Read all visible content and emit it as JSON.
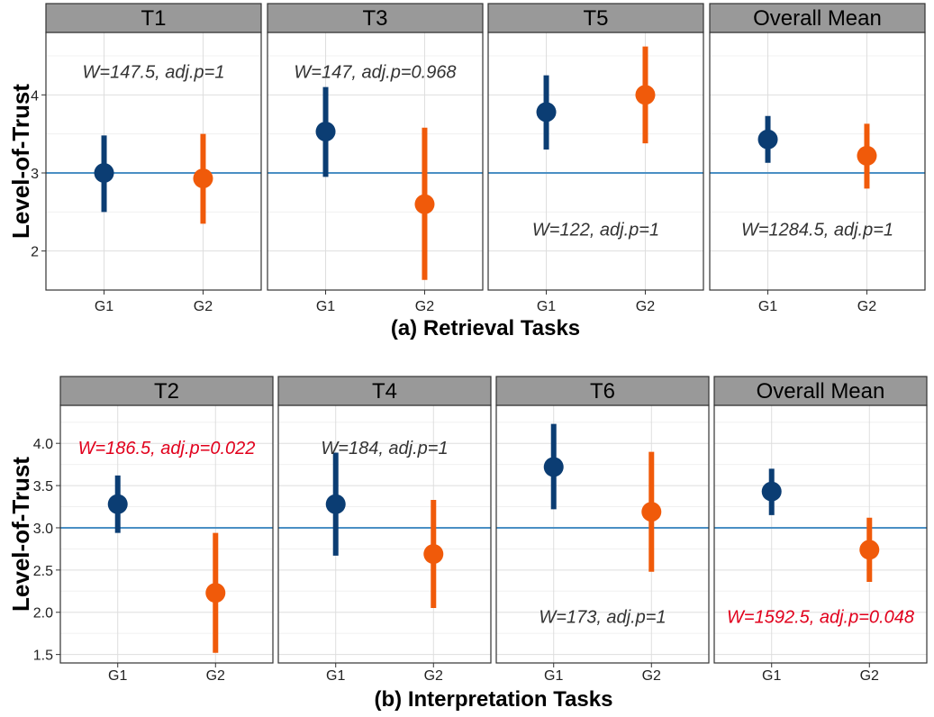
{
  "chart_data": [
    {
      "type": "errorbar",
      "title": "(a) Retrieval Tasks",
      "ylabel": "Level-of-Trust",
      "ylim": [
        1.5,
        4.8
      ],
      "yticks": [
        2,
        3,
        4
      ],
      "ytick_labels": [
        "2",
        "3",
        "4"
      ],
      "reference_line": 3,
      "colors": {
        "G1": "#0b3d73",
        "G2": "#f05a0a",
        "reference_line": "#4a8fc4",
        "annot_normal": "#333333",
        "annot_significant": "#e1001c"
      },
      "categories": [
        "G1",
        "G2"
      ],
      "panels": [
        {
          "name": "T1",
          "annotation": "W=147.5, adj.p=1",
          "annot_y": 4.3,
          "significant": false,
          "points": [
            {
              "group": "G1",
              "mean": 3.0,
              "low": 2.5,
              "high": 3.48
            },
            {
              "group": "G2",
              "mean": 2.93,
              "low": 2.35,
              "high": 3.5
            }
          ]
        },
        {
          "name": "T3",
          "annotation": "W=147, adj.p=0.968",
          "annot_y": 4.3,
          "significant": false,
          "points": [
            {
              "group": "G1",
              "mean": 3.53,
              "low": 2.95,
              "high": 4.1
            },
            {
              "group": "G2",
              "mean": 2.6,
              "low": 1.63,
              "high": 3.58
            }
          ]
        },
        {
          "name": "T5",
          "annotation": "W=122, adj.p=1",
          "annot_y": 2.28,
          "significant": false,
          "points": [
            {
              "group": "G1",
              "mean": 3.78,
              "low": 3.3,
              "high": 4.25
            },
            {
              "group": "G2",
              "mean": 4.0,
              "low": 3.38,
              "high": 4.62
            }
          ]
        },
        {
          "name": "Overall Mean",
          "annotation": "W=1284.5, adj.p=1",
          "annot_y": 2.28,
          "significant": false,
          "points": [
            {
              "group": "G1",
              "mean": 3.43,
              "low": 3.13,
              "high": 3.73
            },
            {
              "group": "G2",
              "mean": 3.22,
              "low": 2.8,
              "high": 3.63
            }
          ]
        }
      ]
    },
    {
      "type": "errorbar",
      "title": "(b) Interpretation Tasks",
      "ylabel": "Level-of-Trust",
      "ylim": [
        1.4,
        4.45
      ],
      "yticks": [
        1.5,
        2.0,
        2.5,
        3.0,
        3.5,
        4.0
      ],
      "ytick_labels": [
        "1.5",
        "2.0",
        "2.5",
        "3.0",
        "3.5",
        "4.0"
      ],
      "reference_line": 3,
      "colors": {
        "G1": "#0b3d73",
        "G2": "#f05a0a",
        "reference_line": "#4a8fc4",
        "annot_normal": "#333333",
        "annot_significant": "#e1001c"
      },
      "categories": [
        "G1",
        "G2"
      ],
      "panels": [
        {
          "name": "T2",
          "annotation": "W=186.5, adj.p=0.022",
          "annot_y": 3.95,
          "significant": true,
          "points": [
            {
              "group": "G1",
              "mean": 3.28,
              "low": 2.94,
              "high": 3.62
            },
            {
              "group": "G2",
              "mean": 2.23,
              "low": 1.52,
              "high": 2.94
            }
          ]
        },
        {
          "name": "T4",
          "annotation": "W=184, adj.p=1",
          "annot_y": 3.95,
          "significant": false,
          "points": [
            {
              "group": "G1",
              "mean": 3.28,
              "low": 2.67,
              "high": 3.89
            },
            {
              "group": "G2",
              "mean": 2.69,
              "low": 2.05,
              "high": 3.33
            }
          ]
        },
        {
          "name": "T6",
          "annotation": "W=173, adj.p=1",
          "annot_y": 1.95,
          "significant": false,
          "points": [
            {
              "group": "G1",
              "mean": 3.72,
              "low": 3.22,
              "high": 4.23
            },
            {
              "group": "G2",
              "mean": 3.19,
              "low": 2.48,
              "high": 3.9
            }
          ]
        },
        {
          "name": "Overall Mean",
          "annotation": "W=1592.5, adj.p=0.048",
          "annot_y": 1.95,
          "significant": true,
          "points": [
            {
              "group": "G1",
              "mean": 3.43,
              "low": 3.15,
              "high": 3.7
            },
            {
              "group": "G2",
              "mean": 2.74,
              "low": 2.36,
              "high": 3.12
            }
          ]
        }
      ]
    }
  ]
}
